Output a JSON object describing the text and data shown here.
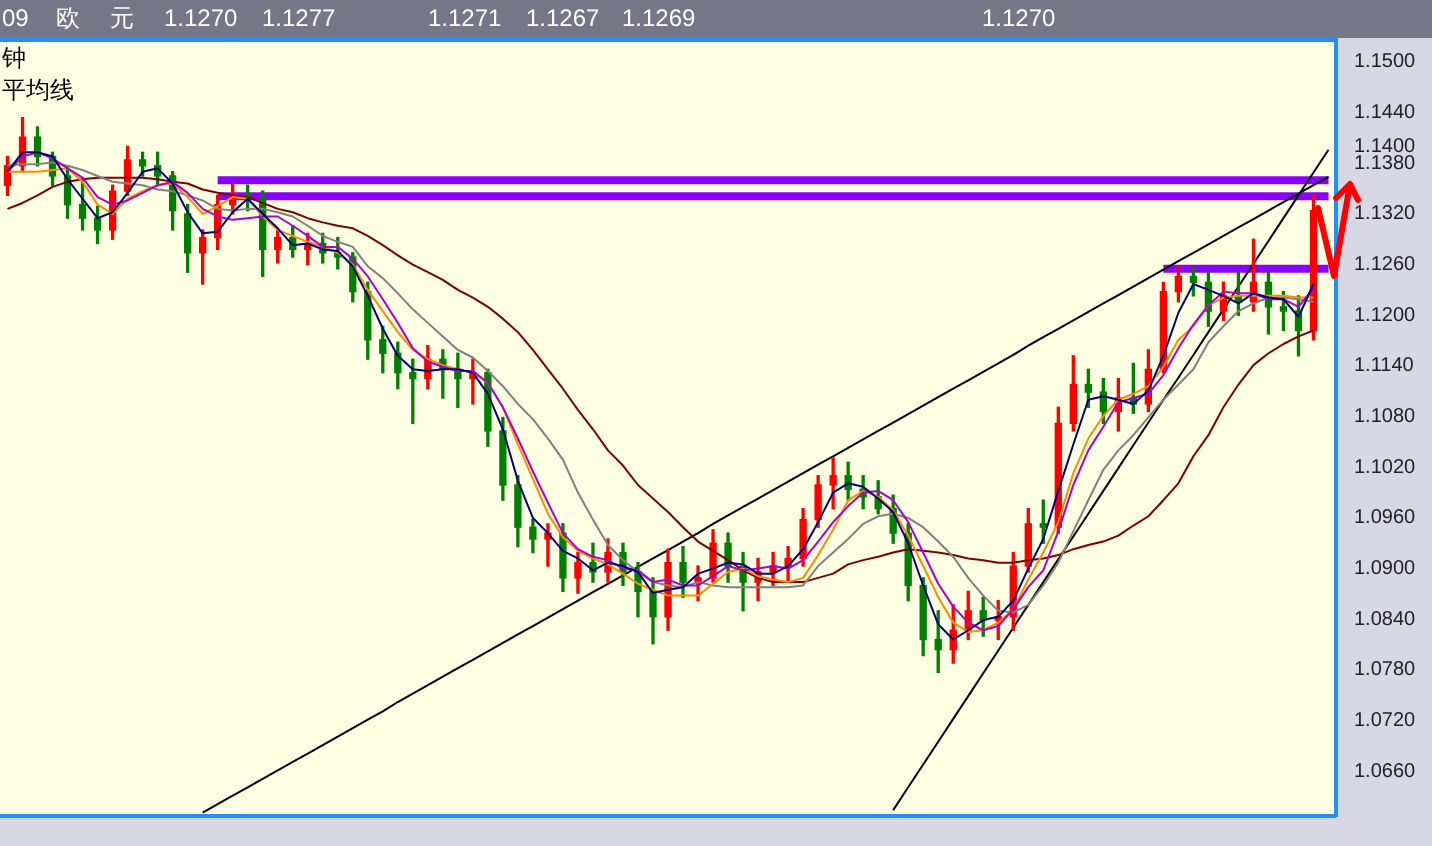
{
  "chart_data": {
    "type": "candlestick",
    "title": "09 欧 元 1.1270 1.1277 1.1271 1.1267 1.1269 1.1270",
    "subtitle": "钟",
    "annotations": [
      "平均线"
    ],
    "categories": [
      null,
      null,
      null,
      null,
      null,
      null,
      null,
      null,
      null,
      null,
      null,
      null,
      null,
      null,
      null,
      null,
      null,
      null,
      null,
      null,
      null,
      null,
      null,
      null,
      null,
      null,
      null,
      null,
      null,
      null,
      null,
      null,
      null,
      null,
      null,
      null,
      null,
      null,
      null,
      null,
      null,
      null,
      null,
      null,
      null,
      null,
      null,
      null,
      null,
      null,
      null,
      null,
      null,
      null,
      null,
      null,
      null,
      null,
      null,
      null,
      null,
      null,
      null,
      null,
      null,
      null,
      null,
      null,
      null,
      null,
      null,
      null,
      null,
      null,
      null,
      null,
      null,
      null,
      null,
      null,
      null,
      null,
      null,
      null,
      null,
      null,
      null,
      null,
      null
    ],
    "ohlc": [
      [
        1.1354,
        1.1388,
        1.1342,
        1.1377
      ],
      [
        1.1377,
        1.1434,
        1.137,
        1.1411
      ],
      [
        1.1411,
        1.1423,
        1.1377,
        1.1388
      ],
      [
        1.1388,
        1.1393,
        1.1354,
        1.1365
      ],
      [
        1.1365,
        1.1377,
        1.1315,
        1.1331
      ],
      [
        1.1331,
        1.1361,
        1.1301,
        1.1315
      ],
      [
        1.1315,
        1.1329,
        1.1285,
        1.1301
      ],
      [
        1.1301,
        1.1354,
        1.129,
        1.1347
      ],
      [
        1.1347,
        1.14,
        1.1342,
        1.1384
      ],
      [
        1.1384,
        1.1393,
        1.1365,
        1.1377
      ],
      [
        1.1377,
        1.1393,
        1.1354,
        1.1365
      ],
      [
        1.1365,
        1.137,
        1.1301,
        1.1324
      ],
      [
        1.132,
        1.1331,
        1.1251,
        1.1274
      ],
      [
        1.1274,
        1.1301,
        1.1237,
        1.1292
      ],
      [
        1.1292,
        1.1342,
        1.1278,
        1.1331
      ],
      [
        1.1331,
        1.1356,
        1.132,
        1.1342
      ],
      [
        1.1342,
        1.1354,
        1.1324,
        1.1338
      ],
      [
        1.1338,
        1.1347,
        1.1246,
        1.1278
      ],
      [
        1.1278,
        1.1301,
        1.1262,
        1.1292
      ],
      [
        1.1292,
        1.1306,
        1.1269,
        1.1278
      ],
      [
        1.1278,
        1.1297,
        1.126,
        1.1285
      ],
      [
        1.1285,
        1.1297,
        1.1262,
        1.1274
      ],
      [
        1.1274,
        1.1292,
        1.1255,
        1.1269
      ],
      [
        1.1269,
        1.1274,
        1.1216,
        1.1228
      ],
      [
        1.1228,
        1.1239,
        1.1148,
        1.1171
      ],
      [
        1.1171,
        1.1187,
        1.1132,
        1.1155
      ],
      [
        1.1155,
        1.1168,
        1.1113,
        1.1132
      ],
      [
        1.1132,
        1.1148,
        1.1072,
        1.1125
      ],
      [
        1.1125,
        1.1164,
        1.1113,
        1.1148
      ],
      [
        1.1148,
        1.1159,
        1.1102,
        1.1136
      ],
      [
        1.1136,
        1.1155,
        1.1091,
        1.1125
      ],
      [
        1.1125,
        1.1148,
        1.1095,
        1.1132
      ],
      [
        1.1132,
        1.1136,
        1.1045,
        1.1063
      ],
      [
        1.1063,
        1.1079,
        1.0981,
        1.0999
      ],
      [
        1.0999,
        1.101,
        1.0926,
        1.0949
      ],
      [
        1.0949,
        1.0958,
        1.0919,
        1.0935
      ],
      [
        1.0935,
        1.0953,
        1.0903,
        1.0942
      ],
      [
        1.0942,
        1.0953,
        1.0873,
        1.0889
      ],
      [
        1.0889,
        1.0919,
        1.0871,
        1.0907
      ],
      [
        1.0907,
        1.093,
        1.0884,
        1.0896
      ],
      [
        1.0896,
        1.0935,
        1.0884,
        1.0919
      ],
      [
        1.0919,
        1.093,
        1.088,
        1.0896
      ],
      [
        1.0896,
        1.0907,
        1.0843,
        1.0873
      ],
      [
        1.0873,
        1.0889,
        1.0811,
        1.0843
      ],
      [
        1.0843,
        1.0923,
        1.0827,
        1.0907
      ],
      [
        1.0907,
        1.0926,
        1.0866,
        1.0884
      ],
      [
        1.0884,
        1.0903,
        1.0862,
        1.0889
      ],
      [
        1.0889,
        1.0946,
        1.0884,
        1.093
      ],
      [
        1.093,
        1.0942,
        1.0884,
        1.0903
      ],
      [
        1.0903,
        1.0919,
        1.085,
        1.0884
      ],
      [
        1.0884,
        1.0912,
        1.0862,
        1.0896
      ],
      [
        1.0896,
        1.0919,
        1.088,
        1.0903
      ],
      [
        1.0903,
        1.0926,
        1.0884,
        1.0912
      ],
      [
        1.0912,
        1.0971,
        1.0903,
        1.0958
      ],
      [
        1.0958,
        1.101,
        1.0949,
        1.0999
      ],
      [
        1.0999,
        1.1031,
        1.0971,
        1.101
      ],
      [
        1.101,
        1.1026,
        1.0981,
        1.0994
      ],
      [
        1.0994,
        1.101,
        1.0971,
        1.0985
      ],
      [
        1.0985,
        1.1004,
        1.0965,
        1.0971
      ],
      [
        1.0971,
        1.0987,
        1.093,
        1.0942
      ],
      [
        1.0942,
        1.0953,
        1.0862,
        1.088
      ],
      [
        1.088,
        1.0889,
        1.0797,
        1.0816
      ],
      [
        1.0816,
        1.085,
        1.0777,
        1.0804
      ],
      [
        1.0804,
        1.0857,
        1.0788,
        1.0827
      ],
      [
        1.0827,
        1.0873,
        1.0816,
        1.085
      ],
      [
        1.085,
        1.0866,
        1.082,
        1.0839
      ],
      [
        1.0839,
        1.0862,
        1.0816,
        1.0843
      ],
      [
        1.0843,
        1.0919,
        1.0827,
        1.0903
      ],
      [
        1.0903,
        1.0971,
        1.0896,
        1.0953
      ],
      [
        1.0953,
        1.0981,
        1.093,
        1.0949
      ],
      [
        1.0949,
        1.1091,
        1.0942,
        1.1072
      ],
      [
        1.1072,
        1.1152,
        1.1063,
        1.1118
      ],
      [
        1.1118,
        1.1136,
        1.1091,
        1.1109
      ],
      [
        1.1109,
        1.1125,
        1.1072,
        1.1086
      ],
      [
        1.1086,
        1.1125,
        1.1063,
        1.1102
      ],
      [
        1.1102,
        1.1143,
        1.1084,
        1.1095
      ],
      [
        1.1095,
        1.1159,
        1.1086,
        1.1136
      ],
      [
        1.1136,
        1.1239,
        1.1132,
        1.1228
      ],
      [
        1.1228,
        1.1258,
        1.1216,
        1.1246
      ],
      [
        1.1246,
        1.1255,
        1.1223,
        1.1239
      ],
      [
        1.1239,
        1.1251,
        1.1187,
        1.1205
      ],
      [
        1.1205,
        1.1239,
        1.1194,
        1.1223
      ],
      [
        1.1223,
        1.1251,
        1.12,
        1.1216
      ],
      [
        1.1216,
        1.129,
        1.1205,
        1.1239
      ],
      [
        1.1239,
        1.1251,
        1.1178,
        1.121
      ],
      [
        1.121,
        1.1228,
        1.1182,
        1.1205
      ],
      [
        1.1205,
        1.1223,
        1.1152,
        1.1182
      ],
      [
        1.1182,
        1.1342,
        1.1171,
        1.1324
      ],
      null
    ],
    "colors": [
      "#ff0000",
      "#ff0000",
      "#008000",
      "#008000",
      "#008000",
      "#008000",
      "#008000",
      "#ff0000",
      "#ff0000",
      "#008000",
      "#008000",
      "#008000",
      "#008000",
      "#ff0000",
      "#ff0000",
      "#ff0000",
      "#008000",
      "#008000",
      "#ff0000",
      "#008000",
      "#ff0000",
      "#008000",
      "#008000",
      "#008000",
      "#008000",
      "#008000",
      "#008000",
      "#008000",
      "#ff0000",
      "#008000",
      "#008000",
      "#ff0000",
      "#008000",
      "#008000",
      "#008000",
      "#008000",
      "#ff0000",
      "#008000",
      "#ff0000",
      "#008000",
      "#ff0000",
      "#008000",
      "#008000",
      "#008000",
      "#ff0000",
      "#008000",
      "#ff0000",
      "#ff0000",
      "#008000",
      "#008000",
      "#ff0000",
      "#ff0000",
      "#ff0000",
      "#ff0000",
      "#ff0000",
      "#ff0000",
      "#008000",
      "#008000",
      "#008000",
      "#008000",
      "#008000",
      "#008000",
      "#008000",
      "#ff0000",
      "#ff0000",
      "#008000",
      "#ff0000",
      "#ff0000",
      "#ff0000",
      "#008000",
      "#ff0000",
      "#ff0000",
      "#008000",
      "#008000",
      "#ff0000",
      "#008000",
      "#ff0000",
      "#ff0000",
      "#ff0000",
      "#008000",
      "#008000",
      "#ff0000",
      "#008000",
      "#ff0000",
      "#008000",
      "#008000",
      "#008000",
      "#ff0000",
      null
    ],
    "series": [
      {
        "type": "line",
        "color": "#000080",
        "values": [
          1.137,
          1.1393,
          1.1393,
          1.1388,
          1.1361,
          1.1338,
          1.1315,
          1.1322,
          1.1345,
          1.137,
          1.1374,
          1.1356,
          1.1322,
          1.1297,
          1.1299,
          1.1322,
          1.1338,
          1.132,
          1.1303,
          1.1283,
          1.1285,
          1.1278,
          1.1276,
          1.1258,
          1.1223,
          1.1184,
          1.1152,
          1.1136,
          1.1134,
          1.1136,
          1.1136,
          1.1132,
          1.1107,
          1.1065,
          1.1004,
          1.096,
          1.0942,
          1.0921,
          1.0912,
          1.0898,
          1.0907,
          1.0903,
          1.0896,
          1.0871,
          1.0875,
          1.0878,
          1.0894,
          1.09,
          1.0907,
          1.0905,
          1.0894,
          1.0894,
          1.0903,
          1.0923,
          1.0955,
          1.099,
          1.1001,
          1.0997,
          1.0983,
          1.0967,
          1.093,
          1.088,
          1.0834,
          1.0816,
          1.0827,
          1.0839,
          1.0843,
          1.0862,
          1.09,
          1.0935,
          1.0992,
          1.1047,
          1.11,
          1.1104,
          1.11,
          1.1095,
          1.1111,
          1.1152,
          1.1203,
          1.1237,
          1.123,
          1.1223,
          1.1214,
          1.1226,
          1.1221,
          1.1219,
          1.1198,
          1.1237,
          null
        ]
      },
      {
        "type": "line",
        "color": "#b000d0",
        "values": [
          1.137,
          1.1388,
          1.1393,
          1.1386,
          1.1374,
          1.1363,
          1.134,
          1.1331,
          1.1336,
          1.1345,
          1.1354,
          1.1358,
          1.1345,
          1.1326,
          1.1317,
          1.1313,
          1.1315,
          1.1317,
          1.1317,
          1.1306,
          1.1294,
          1.1281,
          1.1281,
          1.1267,
          1.1246,
          1.1219,
          1.1191,
          1.1161,
          1.1145,
          1.1139,
          1.1134,
          1.1134,
          1.112,
          1.1091,
          1.1054,
          1.1015,
          1.0978,
          1.0942,
          1.0923,
          1.0914,
          1.091,
          1.09,
          1.0898,
          1.0884,
          1.0887,
          1.088,
          1.088,
          1.0891,
          1.0903,
          1.0898,
          1.09,
          1.0903,
          1.09,
          1.091,
          1.0932,
          1.0955,
          1.0974,
          1.099,
          1.0992,
          1.0981,
          1.0955,
          1.0919,
          1.0882,
          1.0855,
          1.0836,
          1.0827,
          1.0832,
          1.0852,
          1.0878,
          1.0898,
          1.0944,
          1.0999,
          1.104,
          1.1068,
          1.1097,
          1.1102,
          1.1107,
          1.1129,
          1.1161,
          1.1189,
          1.1212,
          1.1228,
          1.1226,
          1.1226,
          1.1219,
          1.1219,
          1.121,
          1.1232,
          null
        ]
      },
      {
        "type": "line",
        "color": "#ff8c00",
        "values": [
          1.137,
          1.137,
          1.137,
          1.1372,
          1.1374,
          1.1358,
          1.1331,
          1.132,
          1.1338,
          1.1347,
          1.1354,
          1.1356,
          1.134,
          1.132,
          1.1329,
          1.134,
          1.1338,
          1.1317,
          1.1301,
          1.1294,
          1.1287,
          1.1281,
          1.1274,
          1.126,
          1.123,
          1.1205,
          1.118,
          1.1159,
          1.1148,
          1.1141,
          1.1136,
          1.1132,
          1.112,
          1.1091,
          1.1047,
          1.1006,
          1.0965,
          1.0937,
          1.0921,
          1.0912,
          1.0905,
          1.0894,
          1.0882,
          1.0875,
          1.0868,
          1.0868,
          1.0868,
          1.0882,
          1.0896,
          1.09,
          1.0891,
          1.0887,
          1.0884,
          1.0889,
          1.0916,
          1.0946,
          1.0981,
          1.0992,
          1.0985,
          1.0969,
          1.0939,
          1.0903,
          1.0866,
          1.0836,
          1.0825,
          1.0827,
          1.0836,
          1.0852,
          1.0887,
          1.0919,
          1.0955,
          1.1013,
          1.1054,
          1.1081,
          1.11,
          1.1107,
          1.1116,
          1.1139,
          1.1171,
          1.1187,
          1.1212,
          1.1221,
          1.1223,
          1.1223,
          1.1223,
          1.1223,
          1.1221,
          1.1221,
          null
        ]
      },
      {
        "type": "line",
        "color": "#808080",
        "values": [
          1.1377,
          1.1379,
          1.1379,
          1.1381,
          1.1377,
          1.1372,
          1.1365,
          1.1358,
          1.1356,
          1.1354,
          1.1349,
          1.1347,
          1.1342,
          1.1336,
          1.1326,
          1.1324,
          1.1326,
          1.1326,
          1.1322,
          1.1317,
          1.1306,
          1.1294,
          1.1287,
          1.1281,
          1.1258,
          1.1244,
          1.1226,
          1.1207,
          1.1191,
          1.1175,
          1.1159,
          1.115,
          1.1134,
          1.1116,
          1.1095,
          1.1077,
          1.1054,
          1.1029,
          1.099,
          1.0958,
          1.0928,
          1.091,
          1.0896,
          1.0884,
          1.088,
          1.0878,
          1.0884,
          1.088,
          1.0878,
          1.0878,
          1.0878,
          1.0878,
          1.0878,
          1.088,
          1.0903,
          1.0919,
          1.0935,
          1.0953,
          1.0962,
          1.0965,
          1.096,
          1.0949,
          1.0932,
          1.0914,
          1.0889,
          1.0868,
          1.085,
          1.0848,
          1.0857,
          1.088,
          1.0907,
          1.0944,
          1.0981,
          1.1017,
          1.104,
          1.1058,
          1.1079,
          1.11,
          1.1118,
          1.1136,
          1.1168,
          1.1187,
          1.1205,
          1.1214,
          1.1221,
          1.1221,
          1.1219,
          1.1216,
          null
        ]
      },
      {
        "type": "line",
        "color": "#800000",
        "values": [
          1.1326,
          1.1333,
          1.1342,
          1.1352,
          1.1358,
          1.1361,
          1.1363,
          1.1363,
          1.1363,
          1.1363,
          1.1361,
          1.1358,
          1.1356,
          1.1349,
          1.1345,
          1.1342,
          1.134,
          1.1333,
          1.1326,
          1.1322,
          1.1315,
          1.131,
          1.1306,
          1.1303,
          1.1294,
          1.1283,
          1.1271,
          1.126,
          1.1251,
          1.1242,
          1.123,
          1.1221,
          1.121,
          1.1196,
          1.118,
          1.1159,
          1.1136,
          1.1113,
          1.1088,
          1.1065,
          1.104,
          1.1022,
          1.0999,
          1.0983,
          1.0967,
          1.0949,
          1.0932,
          1.0921,
          1.091,
          1.0898,
          1.0889,
          1.0884,
          1.0884,
          1.0884,
          1.0889,
          1.0894,
          1.0905,
          1.091,
          1.0914,
          1.0919,
          1.0923,
          1.0921,
          1.0919,
          1.0916,
          1.0912,
          1.091,
          1.0907,
          1.0907,
          1.091,
          1.0912,
          1.0916,
          1.0923,
          1.0928,
          1.0932,
          1.0939,
          1.0951,
          1.0962,
          1.0981,
          1.1001,
          1.1033,
          1.1058,
          1.1091,
          1.1118,
          1.1141,
          1.1155,
          1.1166,
          1.1175,
          1.1182,
          null
        ]
      },
      {
        "type": "line",
        "color": "#000000",
        "values": [
          null,
          null,
          null,
          null,
          null,
          null,
          null,
          null,
          null,
          null,
          null,
          null,
          null,
          1.0611,
          1.0621,
          1.0631,
          1.0641,
          1.0651,
          1.0661,
          1.0671,
          1.0681,
          1.0691,
          1.0701,
          1.0711,
          1.0721,
          1.0731,
          1.0742,
          1.0752,
          1.0762,
          1.0772,
          1.0782,
          1.0792,
          1.0802,
          1.0812,
          1.0822,
          1.0832,
          1.0842,
          1.0852,
          1.0862,
          1.0872,
          1.0882,
          1.0892,
          1.0902,
          1.0912,
          1.0922,
          1.0932,
          1.0942,
          1.0953,
          1.0963,
          1.0973,
          1.0983,
          1.0993,
          1.1003,
          1.1013,
          1.1023,
          1.1033,
          1.1043,
          1.1053,
          1.1063,
          1.1073,
          1.1083,
          1.1093,
          1.1103,
          1.1113,
          1.1123,
          1.1133,
          1.1143,
          1.1153,
          1.1164,
          1.1174,
          1.1184,
          1.1194,
          1.1204,
          1.1214,
          1.1224,
          1.1234,
          1.1244,
          1.1254,
          1.1264,
          1.1274,
          1.1284,
          1.1294,
          1.1304,
          1.1314,
          1.1324,
          1.1334,
          1.1344,
          1.1354,
          1.1364
        ]
      },
      {
        "type": "line",
        "color": "#000000",
        "values": [
          null,
          null,
          null,
          null,
          null,
          null,
          null,
          null,
          null,
          null,
          null,
          null,
          null,
          null,
          null,
          null,
          null,
          null,
          null,
          null,
          null,
          null,
          null,
          null,
          null,
          null,
          null,
          null,
          null,
          null,
          null,
          null,
          null,
          null,
          null,
          null,
          null,
          null,
          null,
          null,
          null,
          null,
          null,
          null,
          null,
          null,
          null,
          null,
          null,
          null,
          null,
          null,
          null,
          null,
          null,
          null,
          null,
          null,
          null,
          1.0614,
          1.0641,
          1.0668,
          1.0695,
          1.0722,
          1.0749,
          1.0776,
          1.0803,
          1.083,
          1.0857,
          1.0884,
          1.0911,
          1.0938,
          1.0965,
          1.0992,
          1.1019,
          1.1046,
          1.1073,
          1.11,
          1.1126,
          1.1153,
          1.118,
          1.1207,
          1.1234,
          1.1261,
          1.1288,
          1.1315,
          1.1342,
          1.1369,
          1.1396
        ]
      },
      {
        "type": "line",
        "color": "#8a00ff",
        "values": [
          null,
          null,
          null,
          null,
          null,
          null,
          null,
          null,
          null,
          null,
          null,
          null,
          null,
          null,
          1.136,
          1.136,
          1.136,
          1.136,
          1.136,
          1.136,
          1.136,
          1.136,
          1.136,
          1.136,
          1.136,
          1.136,
          1.136,
          1.136,
          1.136,
          1.136,
          1.136,
          1.136,
          1.136,
          1.136,
          1.136,
          1.136,
          1.136,
          1.136,
          1.136,
          1.136,
          1.136,
          1.136,
          1.136,
          1.136,
          1.136,
          1.136,
          1.136,
          1.136,
          1.136,
          1.136,
          1.136,
          1.136,
          1.136,
          1.136,
          1.136,
          1.136,
          1.136,
          1.136,
          1.136,
          1.136,
          1.136,
          1.136,
          1.136,
          1.136,
          1.136,
          1.136,
          1.136,
          1.136,
          1.136,
          1.136,
          1.136,
          1.136,
          1.136,
          1.136,
          1.136,
          1.136,
          1.136,
          1.136,
          1.136,
          1.136,
          1.136,
          1.136,
          1.136,
          1.136,
          1.136,
          1.136,
          1.136,
          1.136,
          1.136
        ]
      },
      {
        "type": "line",
        "color": "#8a00ff",
        "values": [
          null,
          null,
          null,
          null,
          null,
          null,
          null,
          null,
          null,
          null,
          null,
          null,
          null,
          null,
          1.1341,
          1.1341,
          1.1341,
          1.1341,
          1.1341,
          1.1341,
          1.1341,
          1.1341,
          1.1341,
          1.1341,
          1.1341,
          1.1341,
          1.1341,
          1.1341,
          1.1341,
          1.1341,
          1.1341,
          1.1341,
          1.1341,
          1.1341,
          1.1341,
          1.1341,
          1.1341,
          1.1341,
          1.1341,
          1.1341,
          1.1341,
          1.1341,
          1.1341,
          1.1341,
          1.1341,
          1.1341,
          1.1341,
          1.1341,
          1.1341,
          1.1341,
          1.1341,
          1.1341,
          1.1341,
          1.1341,
          1.1341,
          1.1341,
          1.1341,
          1.1341,
          1.1341,
          1.1341,
          1.1341,
          1.1341,
          1.1341,
          1.1341,
          1.1341,
          1.1341,
          1.1341,
          1.1341,
          1.1341,
          1.1341,
          1.1341,
          1.1341,
          1.1341,
          1.1341,
          1.1341,
          1.1341,
          1.1341,
          1.1341,
          1.1341,
          1.1341,
          1.1341,
          1.1341,
          1.1341,
          1.1341,
          1.1341,
          1.1341,
          1.1341,
          1.1341,
          1.1341
        ]
      },
      {
        "type": "line",
        "color": "#8a00ff",
        "values": [
          null,
          null,
          null,
          null,
          null,
          null,
          null,
          null,
          null,
          null,
          null,
          null,
          null,
          null,
          null,
          null,
          null,
          null,
          null,
          null,
          null,
          null,
          null,
          null,
          null,
          null,
          null,
          null,
          null,
          null,
          null,
          null,
          null,
          null,
          null,
          null,
          null,
          null,
          null,
          null,
          null,
          null,
          null,
          null,
          null,
          null,
          null,
          null,
          null,
          null,
          null,
          null,
          null,
          null,
          null,
          null,
          null,
          null,
          null,
          null,
          null,
          null,
          null,
          null,
          null,
          null,
          null,
          null,
          null,
          null,
          null,
          null,
          null,
          null,
          null,
          null,
          null,
          1.1255,
          1.1255,
          1.1255,
          1.1255,
          1.1255,
          1.1255,
          1.1255,
          1.1255,
          1.1255,
          1.1255,
          1.1255,
          1.1255
        ]
      }
    ],
    "ylim": [
      1.0607,
      1.1526
    ],
    "yticks": [
      {
        "value": 1.066,
        "label": "1.0660"
      },
      {
        "value": 1.072,
        "label": "1.0720"
      },
      {
        "value": 1.078,
        "label": "1.0780"
      },
      {
        "value": 1.084,
        "label": "1.0840"
      },
      {
        "value": 1.09,
        "label": "1.0900"
      },
      {
        "value": 1.096,
        "label": "1.0960"
      },
      {
        "value": 1.102,
        "label": "1.1020"
      },
      {
        "value": 1.108,
        "label": "1.1080"
      },
      {
        "value": 1.114,
        "label": "1.1140"
      },
      {
        "value": 1.12,
        "label": "1.1200"
      },
      {
        "value": 1.126,
        "label": "1.1260"
      },
      {
        "value": 1.132,
        "label": "1.1320"
      },
      {
        "value": 1.138,
        "label": "1.1380"
      },
      {
        "value": 1.14,
        "label": "1.1400"
      },
      {
        "value": 1.144,
        "label": "1.1440"
      },
      {
        "value": 1.15,
        "label": "1.1500"
      }
    ],
    "tick_labels": "y"
  }
}
